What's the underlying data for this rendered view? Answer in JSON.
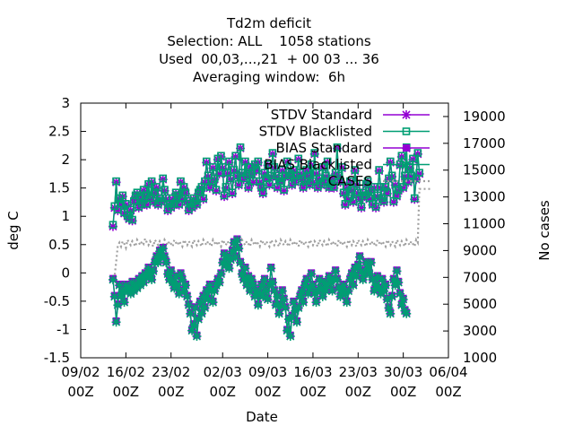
{
  "chart_data": {
    "type": "line",
    "title_lines": [
      "Td2m deficit",
      "Selection: ALL    1058 stations",
      "Used  00,03,...,21  + 00 03 ... 36",
      "Averaging window:  6h"
    ],
    "xlabel": "Date",
    "ylabel": "deg C",
    "y2label": "No cases",
    "ylim": [
      -1.5,
      3
    ],
    "y2lim": [
      1000,
      20000
    ],
    "y_ticks": [
      "-1.5",
      "-1",
      "-0.5",
      "0",
      "0.5",
      "1",
      "1.5",
      "2",
      "2.5",
      "3"
    ],
    "y2_ticks": [
      "1000",
      "3000",
      "5000",
      "7000",
      "9000",
      "11000",
      "13000",
      "15000",
      "17000",
      "19000"
    ],
    "x_ticks": [
      {
        "date": "2020-02-09",
        "line1": "09/02",
        "line2": "00Z"
      },
      {
        "date": "2020-02-16",
        "line1": "16/02",
        "line2": "00Z"
      },
      {
        "date": "2020-02-23",
        "line1": "23/02",
        "line2": "00Z"
      },
      {
        "date": "2020-03-02",
        "line1": "02/03",
        "line2": "00Z"
      },
      {
        "date": "2020-03-09",
        "line1": "09/03",
        "line2": "00Z"
      },
      {
        "date": "2020-03-16",
        "line1": "16/03",
        "line2": "00Z"
      },
      {
        "date": "2020-03-23",
        "line1": "23/03",
        "line2": "00Z"
      },
      {
        "date": "2020-03-30",
        "line1": "30/03",
        "line2": "00Z"
      },
      {
        "date": "2020-04-06",
        "line1": "06/04",
        "line2": "00Z"
      }
    ],
    "legend_position": "top-right",
    "sample_interval_hours": 6,
    "series": [
      {
        "name": "STDV Standard",
        "color": "#9400d3",
        "marker": "star",
        "axis": "left",
        "start": "2020-02-14T00:00",
        "values": [
          0.82,
          1.15,
          1.6,
          1.1,
          1.3,
          1.2,
          1.35,
          1.05,
          1.2,
          1.0,
          0.95,
          1.1,
          0.92,
          1.25,
          1.35,
          1.4,
          1.15,
          1.3,
          1.2,
          1.45,
          1.35,
          1.2,
          1.55,
          1.3,
          1.6,
          1.25,
          1.4,
          1.5,
          1.2,
          1.3,
          1.25,
          1.65,
          1.45,
          1.3,
          1.1,
          1.2,
          1.15,
          1.3,
          1.2,
          1.4,
          1.35,
          1.2,
          1.6,
          1.3,
          1.5,
          1.4,
          1.25,
          1.1,
          1.2,
          1.15,
          1.3,
          1.25,
          1.2,
          1.4,
          1.45,
          1.5,
          1.3,
          1.6,
          1.95,
          1.7,
          1.5,
          1.6,
          1.85,
          1.65,
          1.45,
          2.0,
          1.75,
          2.05,
          1.85,
          1.35,
          1.5,
          1.75,
          1.95,
          1.65,
          1.4,
          1.8,
          2.05,
          1.7,
          1.55,
          2.2,
          1.75,
          1.65,
          1.95,
          1.7,
          1.5,
          1.85,
          1.75,
          1.6,
          1.9,
          1.8,
          1.95,
          1.6,
          1.5,
          1.4,
          1.75,
          1.65,
          1.9,
          1.55,
          1.7,
          2.1,
          1.85,
          1.7,
          1.5,
          1.65,
          1.6,
          1.8,
          1.45,
          1.7,
          1.95,
          1.75,
          1.7,
          1.55,
          1.8,
          1.6,
          1.7,
          2.0,
          1.75,
          1.65,
          1.5,
          1.6,
          1.8,
          1.7,
          1.55,
          1.9,
          1.6,
          2.1,
          1.75,
          1.5,
          1.65,
          1.55,
          1.85,
          1.6,
          1.7,
          1.95,
          1.5,
          1.55,
          1.65,
          1.5,
          1.75,
          2.2,
          1.7,
          1.6,
          1.85,
          1.4,
          1.2,
          1.5,
          1.3,
          1.6,
          1.45,
          1.25,
          1.8,
          1.55,
          1.4,
          1.3,
          1.15,
          1.4,
          1.35,
          1.55,
          1.6,
          1.3,
          1.45,
          1.2,
          1.5,
          1.15,
          1.35,
          1.8,
          1.5,
          1.3,
          1.25,
          1.5,
          1.4,
          1.65,
          1.95,
          1.7,
          1.25,
          1.55,
          1.35,
          1.45,
          1.9,
          2.05,
          1.5,
          1.7,
          2.2,
          1.6,
          1.85,
          1.7,
          2.0,
          1.3,
          1.65,
          2.1,
          1.75
        ]
      },
      {
        "name": "STDV Blacklisted",
        "color": "#009e73",
        "marker": "open-square",
        "axis": "left",
        "start": "2020-02-14T00:00",
        "values": [
          0.85,
          1.18,
          1.62,
          1.12,
          1.32,
          1.22,
          1.37,
          1.07,
          1.22,
          1.02,
          0.97,
          1.12,
          0.94,
          1.27,
          1.37,
          1.42,
          1.17,
          1.32,
          1.22,
          1.47,
          1.37,
          1.22,
          1.57,
          1.32,
          1.62,
          1.27,
          1.42,
          1.52,
          1.22,
          1.32,
          1.27,
          1.67,
          1.47,
          1.32,
          1.12,
          1.22,
          1.17,
          1.32,
          1.22,
          1.42,
          1.37,
          1.22,
          1.62,
          1.32,
          1.52,
          1.42,
          1.27,
          1.12,
          1.22,
          1.17,
          1.32,
          1.27,
          1.22,
          1.42,
          1.47,
          1.52,
          1.32,
          1.62,
          1.97,
          1.72,
          1.52,
          1.62,
          1.87,
          1.67,
          1.47,
          2.02,
          1.77,
          2.07,
          1.87,
          1.37,
          1.52,
          1.77,
          1.97,
          1.67,
          1.42,
          1.82,
          2.07,
          1.72,
          1.57,
          2.22,
          1.77,
          1.67,
          1.97,
          1.72,
          1.52,
          1.87,
          1.77,
          1.62,
          1.92,
          1.82,
          1.97,
          1.62,
          1.52,
          1.42,
          1.77,
          1.67,
          1.92,
          1.57,
          1.72,
          2.12,
          1.87,
          1.72,
          1.52,
          1.67,
          1.62,
          1.82,
          1.47,
          1.72,
          1.97,
          1.77,
          1.72,
          1.57,
          1.82,
          1.62,
          1.72,
          2.02,
          1.77,
          1.67,
          1.52,
          1.62,
          1.82,
          1.72,
          1.57,
          1.92,
          1.62,
          2.12,
          1.77,
          1.52,
          1.67,
          1.57,
          1.87,
          1.62,
          1.72,
          1.97,
          1.52,
          1.57,
          1.67,
          1.52,
          1.77,
          2.22,
          1.72,
          1.62,
          1.87,
          1.42,
          1.22,
          1.52,
          1.32,
          1.62,
          1.47,
          1.27,
          1.82,
          1.57,
          1.42,
          1.32,
          1.17,
          1.42,
          1.37,
          1.57,
          1.62,
          1.32,
          1.47,
          1.22,
          1.52,
          1.17,
          1.37,
          1.82,
          1.52,
          1.32,
          1.27,
          1.52,
          1.42,
          1.67,
          1.97,
          1.72,
          1.27,
          1.57,
          1.37,
          1.47,
          1.92,
          2.07,
          1.52,
          1.72,
          2.22,
          1.62,
          1.87,
          1.72,
          2.02,
          1.32,
          1.67,
          2.12,
          1.77
        ]
      },
      {
        "name": "BIAS Standard",
        "color": "#9400d3",
        "marker": "solid-square",
        "axis": "left",
        "start": "2020-02-14T00:00",
        "values": [
          -0.1,
          -0.4,
          -0.85,
          -0.55,
          -0.2,
          -0.4,
          -0.3,
          -0.5,
          -0.2,
          -0.3,
          -0.25,
          -0.35,
          -0.15,
          -0.3,
          -0.2,
          -0.25,
          -0.1,
          -0.2,
          -0.05,
          -0.15,
          0.0,
          -0.05,
          0.1,
          0.0,
          -0.1,
          0.05,
          0.2,
          0.3,
          0.2,
          0.4,
          0.3,
          0.45,
          0.3,
          0.2,
          0.0,
          -0.1,
          0.05,
          -0.15,
          -0.25,
          -0.05,
          -0.2,
          -0.35,
          0.0,
          -0.1,
          -0.3,
          -0.2,
          -0.4,
          -0.55,
          -0.7,
          -1.0,
          -0.9,
          -0.6,
          -1.1,
          -0.8,
          -0.5,
          -0.7,
          -0.4,
          -0.6,
          -0.3,
          -0.45,
          -0.2,
          -0.3,
          -0.5,
          -0.3,
          -0.2,
          -0.1,
          -0.15,
          0.0,
          0.2,
          0.35,
          0.15,
          0.3,
          0.1,
          0.25,
          0.4,
          0.55,
          0.3,
          0.6,
          0.45,
          0.2,
          0.0,
          -0.1,
          0.1,
          -0.2,
          -0.05,
          -0.3,
          -0.1,
          -0.2,
          -0.4,
          -0.3,
          -0.55,
          -0.35,
          -0.2,
          -0.4,
          -0.1,
          -0.3,
          -0.45,
          -0.2,
          0.1,
          -0.15,
          -0.3,
          -0.55,
          -0.4,
          -0.7,
          -0.55,
          -0.3,
          -0.45,
          -0.6,
          -1.0,
          -0.8,
          -1.1,
          -0.75,
          -0.5,
          -0.65,
          -0.85,
          -0.6,
          -0.4,
          -0.3,
          -0.5,
          -0.2,
          -0.1,
          -0.35,
          -0.25,
          0.0,
          -0.2,
          -0.35,
          -0.5,
          -0.3,
          -0.1,
          -0.25,
          -0.4,
          -0.15,
          -0.3,
          -0.2,
          -0.05,
          -0.15,
          -0.3,
          -0.1,
          0.05,
          -0.1,
          -0.25,
          -0.4,
          -0.3,
          -0.2,
          -0.35,
          -0.5,
          -0.3,
          -0.1,
          0.0,
          -0.2,
          0.1,
          -0.05,
          0.15,
          0.3,
          0.05,
          -0.1,
          0.0,
          0.2,
          0.1,
          0.0,
          0.2,
          -0.1,
          -0.3,
          -0.2,
          -0.05,
          -0.25,
          -0.35,
          -0.1,
          -0.3,
          -0.2,
          -0.45,
          -0.6,
          -0.7,
          -0.4,
          -0.1,
          -0.2,
          0.05,
          -0.15,
          -0.35,
          -0.55,
          -0.45,
          -0.65,
          -0.7
        ]
      },
      {
        "name": "BIAS Blacklisted",
        "color": "#009e73",
        "marker": "star",
        "axis": "left",
        "start": "2020-02-14T00:00",
        "values": [
          -0.12,
          -0.42,
          -0.87,
          -0.57,
          -0.22,
          -0.42,
          -0.32,
          -0.52,
          -0.22,
          -0.32,
          -0.27,
          -0.37,
          -0.17,
          -0.32,
          -0.22,
          -0.27,
          -0.12,
          -0.22,
          -0.07,
          -0.17,
          -0.02,
          -0.07,
          0.08,
          -0.02,
          -0.12,
          0.03,
          0.18,
          0.28,
          0.18,
          0.38,
          0.28,
          0.43,
          0.28,
          0.18,
          -0.02,
          -0.12,
          0.03,
          -0.17,
          -0.27,
          -0.07,
          -0.22,
          -0.37,
          -0.02,
          -0.12,
          -0.32,
          -0.22,
          -0.42,
          -0.57,
          -0.72,
          -1.02,
          -0.92,
          -0.62,
          -1.12,
          -0.82,
          -0.52,
          -0.72,
          -0.42,
          -0.62,
          -0.32,
          -0.47,
          -0.22,
          -0.32,
          -0.52,
          -0.32,
          -0.22,
          -0.12,
          -0.17,
          -0.02,
          0.18,
          0.33,
          0.13,
          0.28,
          0.08,
          0.23,
          0.38,
          0.53,
          0.28,
          0.58,
          0.43,
          0.18,
          -0.02,
          -0.12,
          0.08,
          -0.22,
          -0.07,
          -0.32,
          -0.12,
          -0.22,
          -0.42,
          -0.32,
          -0.57,
          -0.37,
          -0.22,
          -0.42,
          -0.12,
          -0.32,
          -0.47,
          -0.22,
          0.08,
          -0.17,
          -0.32,
          -0.57,
          -0.42,
          -0.72,
          -0.57,
          -0.32,
          -0.47,
          -0.62,
          -1.02,
          -0.82,
          -1.12,
          -0.77,
          -0.52,
          -0.67,
          -0.87,
          -0.62,
          -0.42,
          -0.32,
          -0.52,
          -0.22,
          -0.12,
          -0.37,
          -0.27,
          -0.02,
          -0.22,
          -0.37,
          -0.52,
          -0.32,
          -0.12,
          -0.27,
          -0.42,
          -0.17,
          -0.32,
          -0.22,
          -0.07,
          -0.17,
          -0.32,
          -0.12,
          0.03,
          -0.12,
          -0.27,
          -0.42,
          -0.32,
          -0.22,
          -0.37,
          -0.52,
          -0.32,
          -0.12,
          -0.02,
          -0.22,
          0.08,
          -0.07,
          0.13,
          0.28,
          0.03,
          -0.12,
          -0.02,
          0.18,
          0.08,
          -0.02,
          0.18,
          -0.12,
          -0.32,
          -0.22,
          -0.07,
          -0.27,
          -0.37,
          -0.12,
          -0.32,
          -0.22,
          -0.47,
          -0.62,
          -0.72,
          -0.42,
          -0.12,
          -0.22,
          0.03,
          -0.17,
          -0.37,
          -0.57,
          -0.47,
          -0.67,
          -0.72
        ]
      },
      {
        "name": "CASES",
        "color": "#a0a0a0",
        "marker": "none",
        "line_style": "dotted",
        "axis": "right",
        "start": "2020-02-14T00:00",
        "values": [
          6900,
          7100,
          8200,
          9400,
          9600,
          9300,
          9700,
          9500,
          9200,
          9800,
          9600,
          9400,
          9700,
          9500,
          9300,
          9800,
          9600,
          9400,
          9700,
          9500,
          9900,
          9600,
          9400,
          9700,
          9500,
          9300,
          9800,
          9600,
          9400,
          9700,
          9500,
          9300,
          9800,
          9600,
          9400,
          9700,
          9500,
          9300,
          9800,
          9600,
          9400,
          9700,
          9500,
          9300,
          9800,
          9600,
          9400,
          9700,
          9500,
          9300,
          9800,
          9600,
          9400,
          9700,
          9500,
          9300,
          9800,
          9600,
          9400,
          9700,
          9500,
          9300,
          9800,
          9600,
          9400,
          9700,
          9500,
          9300,
          9800,
          9600,
          9400,
          9700,
          9500,
          9300,
          9800,
          9600,
          9400,
          9700,
          9500,
          9300,
          9800,
          9600,
          9400,
          9700,
          9500,
          9300,
          9800,
          9600,
          9400,
          9700,
          9500,
          9300,
          9800,
          9600,
          9400,
          9700,
          9500,
          9300,
          9800,
          9600,
          9400,
          9700,
          9500,
          9300,
          9800,
          9600,
          9400,
          9700,
          9500,
          9300,
          9800,
          9600,
          9400,
          9700,
          9500,
          9300,
          9800,
          9600,
          9400,
          9700,
          9500,
          9300,
          9800,
          9600,
          9400,
          9700,
          9500,
          9300,
          9800,
          9600,
          9400,
          9700,
          9500,
          9300,
          9800,
          9600,
          9400,
          9700,
          9500,
          9300,
          9800,
          9600,
          9400,
          9700,
          9500,
          9300,
          9800,
          9600,
          9400,
          9700,
          9500,
          9300,
          9800,
          9600,
          9400,
          9700,
          9500,
          9300,
          9800,
          9600,
          9400,
          9700,
          9500,
          9300,
          9800,
          9600,
          9400,
          9700,
          9500,
          9300,
          9800,
          9600,
          9400,
          9700,
          9500,
          9300,
          9800,
          9600,
          9400,
          9700,
          9500,
          9300,
          9800,
          9600,
          9400,
          9700,
          9500,
          9300,
          9800,
          9600,
          13600,
          13600,
          13600,
          13600,
          13600,
          13600,
          13600,
          13600
        ]
      }
    ]
  }
}
